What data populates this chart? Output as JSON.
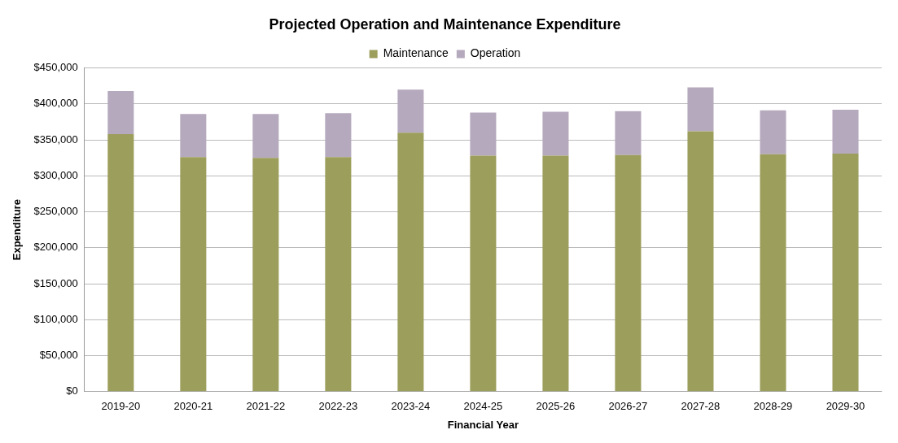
{
  "chart_data": {
    "type": "bar",
    "title": "Projected Operation and Maintenance Expenditure",
    "xlabel": "Financial Year",
    "ylabel": "Expenditure",
    "categories": [
      "2019-20",
      "2020-21",
      "2021-22",
      "2022-23",
      "2023-24",
      "2024-25",
      "2025-26",
      "2026-27",
      "2027-28",
      "2028-29",
      "2029-30"
    ],
    "stacked": true,
    "series": [
      {
        "name": "Maintenance",
        "color": "#9c9e5c",
        "values": [
          358000,
          326000,
          325000,
          326000,
          360000,
          328000,
          328000,
          329000,
          362000,
          330000,
          331000
        ]
      },
      {
        "name": "Operation",
        "color": "#b5a9bd",
        "values": [
          60000,
          60000,
          61000,
          61000,
          60000,
          60000,
          61000,
          61000,
          61000,
          61000,
          61000
        ]
      }
    ],
    "ylim": [
      0,
      450000
    ],
    "yticks": [
      {
        "value": 0,
        "label": "$0"
      },
      {
        "value": 50000,
        "label": "$50,000"
      },
      {
        "value": 100000,
        "label": "$100,000"
      },
      {
        "value": 150000,
        "label": "$150,000"
      },
      {
        "value": 200000,
        "label": "$200,000"
      },
      {
        "value": 250000,
        "label": "$250,000"
      },
      {
        "value": 300000,
        "label": "$300,000"
      },
      {
        "value": 350000,
        "label": "$350,000"
      },
      {
        "value": 400000,
        "label": "$400,000"
      },
      {
        "value": 450000,
        "label": "$450,000"
      }
    ],
    "grid": "y",
    "legend": "top"
  }
}
